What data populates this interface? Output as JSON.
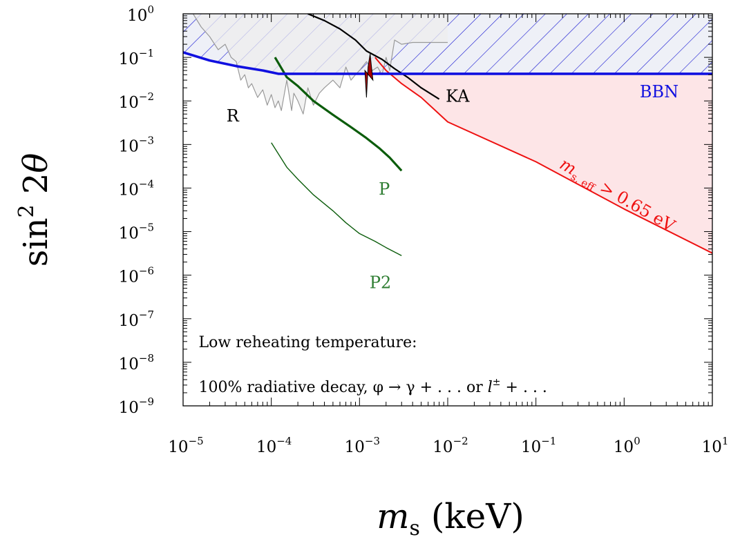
{
  "chart_data": {
    "type": "line",
    "title": "",
    "xlabel": "m_s (keV)",
    "ylabel": "sin² 2θ",
    "x_scale": "log",
    "y_scale": "log",
    "xlim": [
      1e-05,
      10
    ],
    "ylim": [
      1e-09,
      1
    ],
    "x_ticks": [
      {
        "value": 1e-05,
        "base": "10",
        "exp": "−5"
      },
      {
        "value": 0.0001,
        "base": "10",
        "exp": "−4"
      },
      {
        "value": 0.001,
        "base": "10",
        "exp": "−3"
      },
      {
        "value": 0.01,
        "base": "10",
        "exp": "−2"
      },
      {
        "value": 0.1,
        "base": "10",
        "exp": "−1"
      },
      {
        "value": 1,
        "base": "10",
        "exp": "0"
      },
      {
        "value": 10,
        "base": "10",
        "exp": "1"
      }
    ],
    "y_ticks": [
      {
        "value": 1,
        "base": "10",
        "exp": "0"
      },
      {
        "value": 0.1,
        "base": "10",
        "exp": "−1"
      },
      {
        "value": 0.01,
        "base": "10",
        "exp": "−2"
      },
      {
        "value": 0.001,
        "base": "10",
        "exp": "−3"
      },
      {
        "value": 0.0001,
        "base": "10",
        "exp": "−4"
      },
      {
        "value": 1e-05,
        "base": "10",
        "exp": "−5"
      },
      {
        "value": 1e-06,
        "base": "10",
        "exp": "−6"
      },
      {
        "value": 1e-07,
        "base": "10",
        "exp": "−7"
      },
      {
        "value": 1e-08,
        "base": "10",
        "exp": "−8"
      },
      {
        "value": 1e-09,
        "base": "10",
        "exp": "−9"
      }
    ],
    "grid": false,
    "series": [
      {
        "name": "BBN",
        "color": "#1010e0",
        "style": "thick-line-hatched-above",
        "x": [
          1e-05,
          2e-05,
          4e-05,
          8e-05,
          0.00012,
          0.0002,
          0.001,
          0.01,
          0.1,
          1,
          10
        ],
        "y": [
          0.13,
          0.085,
          0.063,
          0.05,
          0.042,
          0.042,
          0.042,
          0.042,
          0.042,
          0.042,
          0.042
        ]
      },
      {
        "name": "m_s,eff > 0.65 eV",
        "color": "#ee1111",
        "style": "line-filled-above",
        "x": [
          0.0015,
          0.002,
          0.003,
          0.005,
          0.01,
          0.1,
          1,
          10
        ],
        "y": [
          0.1,
          0.05,
          0.025,
          0.012,
          0.0033,
          0.0004,
          3.3e-05,
          3.2e-06
        ]
      },
      {
        "name": "KA",
        "color": "#000000",
        "style": "line",
        "x": [
          0.00026,
          0.0004,
          0.0006,
          0.0009,
          0.0012,
          0.0018,
          0.0025,
          0.0035,
          0.005,
          0.008
        ],
        "y": [
          1.0,
          0.7,
          0.45,
          0.25,
          0.14,
          0.09,
          0.055,
          0.035,
          0.02,
          0.011
        ]
      },
      {
        "name": "R",
        "color": "#999999",
        "fill": "#eeeeee",
        "style": "filled-region",
        "x": [
          1.3e-05,
          1.6e-05,
          2e-05,
          2.5e-05,
          3e-05,
          3.5e-05,
          4e-05,
          4.5e-05,
          5e-05,
          5.5e-05,
          6e-05,
          7e-05,
          8e-05,
          9e-05,
          0.0001,
          0.00011,
          0.00012,
          0.00013,
          0.00015,
          0.00017,
          0.00018,
          0.0002,
          0.00023,
          0.00026,
          0.0003,
          0.00035,
          0.0004,
          0.0005,
          0.0006,
          0.0007,
          0.0008,
          0.0009,
          0.001,
          0.0012,
          0.0014,
          0.0016,
          0.0018,
          0.002,
          0.0022,
          0.0025,
          0.003,
          0.004,
          0.006,
          0.01
        ],
        "y": [
          1.0,
          0.5,
          0.3,
          0.15,
          0.2,
          0.1,
          0.08,
          0.03,
          0.04,
          0.02,
          0.025,
          0.012,
          0.018,
          0.008,
          0.014,
          0.007,
          0.01,
          0.006,
          0.03,
          0.006,
          0.015,
          0.01,
          0.005,
          0.02,
          0.008,
          0.015,
          0.02,
          0.03,
          0.02,
          0.06,
          0.03,
          0.04,
          0.05,
          0.08,
          0.05,
          0.06,
          0.04,
          0.1,
          0.05,
          0.25,
          0.2,
          0.22,
          0.22,
          0.22
        ]
      },
      {
        "name": "P",
        "color": "#0b5c0b",
        "style": "thick-line",
        "x": [
          0.00011,
          0.00015,
          0.0002,
          0.0003,
          0.0005,
          0.0008,
          0.0012,
          0.0017,
          0.0022,
          0.003
        ],
        "y": [
          0.1,
          0.035,
          0.022,
          0.01,
          0.0048,
          0.0025,
          0.0014,
          0.0008,
          0.0005,
          0.00025
        ]
      },
      {
        "name": "P2",
        "color": "#0b5c0b",
        "style": "thin-line",
        "x": [
          0.0001,
          0.00015,
          0.0002,
          0.0003,
          0.0005,
          0.0007,
          0.001,
          0.0015,
          0.002,
          0.003
        ],
        "y": [
          0.0011,
          0.0003,
          0.00016,
          7e-05,
          3e-05,
          1.6e-05,
          9e-06,
          6e-06,
          4.3e-06,
          2.8e-06
        ]
      }
    ],
    "red_spike": {
      "color": "#aa0000",
      "x": [
        0.00115,
        0.0012,
        0.00125,
        0.00132,
        0.00138,
        0.00142
      ],
      "y": [
        0.05,
        0.012,
        0.06,
        0.12,
        0.05,
        0.03
      ]
    },
    "labels": [
      {
        "text": "BBN",
        "x": 1.5,
        "y": 0.012,
        "color": "#1010e0"
      },
      {
        "text": "KA",
        "x": 0.0095,
        "y": 0.0095,
        "color": "#000000"
      },
      {
        "text": "R",
        "x": 3.1e-05,
        "y": 0.0034,
        "color": "#000000"
      },
      {
        "text": "P",
        "x": 0.00165,
        "y": 7e-05,
        "color": "#2e7d32"
      },
      {
        "text": "P2",
        "x": 0.0013,
        "y": 5e-07,
        "color": "#2e7d32"
      },
      {
        "text": "m",
        "sub": "s, eff",
        "rest": " > 0.65 eV",
        "x": 0.18,
        "y": 0.0003,
        "color": "#ee1111",
        "angle": 30
      }
    ],
    "notes": [
      {
        "text": "Low reheating temperature:",
        "x": 1.3e-05,
        "y": 3e-08
      },
      {
        "text": "100% radiative decay, φ → γ + . . .  or  ",
        "tail": "l",
        "tail_sup": "±",
        "tail_rest": " + . . .",
        "x": 1.3e-05,
        "y": 2.8e-09
      }
    ],
    "colors": {
      "bbn_hatch_fill": "#eef0f7",
      "red_region_fill": "#fde2e4"
    }
  }
}
